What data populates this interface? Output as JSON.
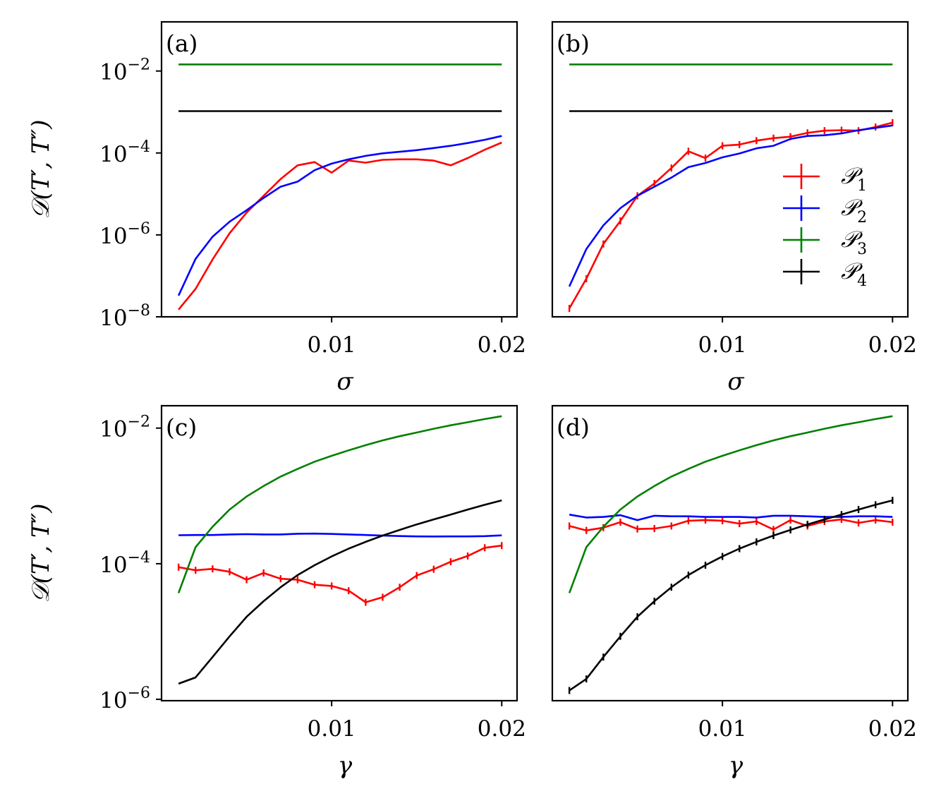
{
  "chart_data": [
    {
      "panel_label": "(a)",
      "type": "line",
      "xlabel": "σ",
      "ylabel": "𝒟(T′, T″)",
      "yscale": "log",
      "ylim_exp": [
        -8,
        -0.8
      ],
      "xlim": [
        0,
        0.0209
      ],
      "xticks": [
        0.01,
        0.02
      ],
      "xtick_labels": [
        "0.01",
        "0.02"
      ],
      "yticks_exp": [
        -8,
        -6,
        -4,
        -2
      ],
      "ytick_labels": [
        {
          "base": "10",
          "exp": "−8"
        },
        {
          "base": "10",
          "exp": "−6"
        },
        {
          "base": "10",
          "exp": "−4"
        },
        {
          "base": "10",
          "exp": "−2"
        }
      ],
      "x": [
        0.001,
        0.002,
        0.003,
        0.004,
        0.005,
        0.006,
        0.007,
        0.008,
        0.009,
        0.01,
        0.011,
        0.012,
        0.013,
        0.014,
        0.015,
        0.016,
        0.017,
        0.018,
        0.019,
        0.02
      ],
      "series": [
        {
          "name": "𝒫₁",
          "color": "#ff0000",
          "errorbars": false,
          "values": [
            1.5e-08,
            4.8e-08,
            2.5e-07,
            1.1e-06,
            3.5e-06,
            9e-06,
            2.3e-05,
            5e-05,
            6e-05,
            3.3e-05,
            6.5e-05,
            5.8e-05,
            6.8e-05,
            7e-05,
            7e-05,
            6.5e-05,
            5e-05,
            7.5e-05,
            0.00012,
            0.00018
          ]
        },
        {
          "name": "𝒫₂",
          "color": "#0000ff",
          "errorbars": false,
          "values": [
            3.3e-08,
            2.6e-07,
            9e-07,
            2.1e-06,
            4e-06,
            8e-06,
            1.5e-05,
            2e-05,
            3.8e-05,
            5.5e-05,
            7e-05,
            8.5e-05,
            9.8e-05,
            0.000107,
            0.000117,
            0.000132,
            0.00015,
            0.000175,
            0.00021,
            0.00026
          ]
        },
        {
          "name": "𝒫₃",
          "color": "#008000",
          "errorbars": false,
          "values": [
            0.0145,
            0.0145,
            0.0145,
            0.0145,
            0.0145,
            0.0145,
            0.0145,
            0.0145,
            0.0145,
            0.0145,
            0.0145,
            0.0145,
            0.0145,
            0.0145,
            0.0145,
            0.0145,
            0.0145,
            0.0145,
            0.0145,
            0.0145
          ]
        },
        {
          "name": "𝒫₄",
          "color": "#000000",
          "errorbars": false,
          "values": [
            0.00105,
            0.00105,
            0.00105,
            0.00105,
            0.00105,
            0.00105,
            0.00105,
            0.00105,
            0.00105,
            0.00105,
            0.00105,
            0.00105,
            0.00105,
            0.00105,
            0.00105,
            0.00105,
            0.00105,
            0.00105,
            0.00105,
            0.00105
          ]
        }
      ]
    },
    {
      "panel_label": "(b)",
      "type": "line",
      "xlabel": "σ",
      "ylabel": "",
      "yscale": "log",
      "ylim_exp": [
        -8,
        -0.8
      ],
      "xlim": [
        0,
        0.0209
      ],
      "xticks": [
        0.01,
        0.02
      ],
      "xtick_labels": [
        "0.01",
        "0.02"
      ],
      "yticks_exp": [],
      "ytick_labels": [],
      "legend": "right",
      "x": [
        0.001,
        0.002,
        0.003,
        0.004,
        0.005,
        0.006,
        0.007,
        0.008,
        0.009,
        0.01,
        0.011,
        0.012,
        0.013,
        0.014,
        0.015,
        0.016,
        0.017,
        0.018,
        0.019,
        0.02
      ],
      "series": [
        {
          "name": "𝒫₁",
          "color": "#ff0000",
          "errorbars": true,
          "values": [
            1.6e-08,
            8.5e-08,
            6e-07,
            2.2e-06,
            9e-06,
            1.8e-05,
            4.3e-05,
            0.00011,
            7.5e-05,
            0.00015,
            0.00016,
            0.0002,
            0.00023,
            0.00025,
            0.00031,
            0.00035,
            0.00036,
            0.00035,
            0.00043,
            0.00055
          ]
        },
        {
          "name": "𝒫₂",
          "color": "#0000ff",
          "errorbars": false,
          "values": [
            5.5e-08,
            4.5e-07,
            1.7e-06,
            4.5e-06,
            9e-06,
            1.5e-05,
            2.5e-05,
            4.5e-05,
            5.7e-05,
            7.8e-05,
            9.7e-05,
            0.00013,
            0.00015,
            0.00022,
            0.00026,
            0.00027,
            0.0003,
            0.00036,
            0.00041,
            0.00047
          ]
        },
        {
          "name": "𝒫₃",
          "color": "#008000",
          "errorbars": false,
          "values": [
            0.0145,
            0.0145,
            0.0145,
            0.0145,
            0.0145,
            0.0145,
            0.0145,
            0.0145,
            0.0145,
            0.0145,
            0.0145,
            0.0145,
            0.0145,
            0.0145,
            0.0145,
            0.0145,
            0.0145,
            0.0145,
            0.0145,
            0.0145
          ]
        },
        {
          "name": "𝒫₄",
          "color": "#000000",
          "errorbars": false,
          "values": [
            0.00105,
            0.00105,
            0.00105,
            0.00105,
            0.00105,
            0.00105,
            0.00105,
            0.00105,
            0.00105,
            0.00105,
            0.00105,
            0.00105,
            0.00105,
            0.00105,
            0.00105,
            0.00105,
            0.00105,
            0.00105,
            0.00105,
            0.00105
          ]
        }
      ]
    },
    {
      "panel_label": "(c)",
      "type": "line",
      "xlabel": "γ",
      "ylabel": "𝒟(T′, T″)",
      "yscale": "log",
      "ylim_exp": [
        -6.02,
        -1.67
      ],
      "xlim": [
        0,
        0.0209
      ],
      "xticks": [
        0.01,
        0.02
      ],
      "xtick_labels": [
        "0.01",
        "0.02"
      ],
      "yticks_exp": [
        -6,
        -4,
        -2
      ],
      "ytick_labels": [
        {
          "base": "10",
          "exp": "−6"
        },
        {
          "base": "10",
          "exp": "−4"
        },
        {
          "base": "10",
          "exp": "−2"
        }
      ],
      "x": [
        0.001,
        0.002,
        0.003,
        0.004,
        0.005,
        0.006,
        0.007,
        0.008,
        0.009,
        0.01,
        0.011,
        0.012,
        0.013,
        0.014,
        0.015,
        0.016,
        0.017,
        0.018,
        0.019,
        0.02
      ],
      "series": [
        {
          "name": "𝒫₁",
          "color": "#ff0000",
          "errorbars": true,
          "values": [
            8.9e-05,
            8e-05,
            8.4e-05,
            7.6e-05,
            5.8e-05,
            7.3e-05,
            6e-05,
            5.8e-05,
            4.9e-05,
            4.7e-05,
            4e-05,
            2.7e-05,
            3.2e-05,
            4.5e-05,
            6.7e-05,
            8.3e-05,
            0.000107,
            0.00013,
            0.000172,
            0.000185
          ]
        },
        {
          "name": "𝒫₂",
          "color": "#0000ff",
          "errorbars": false,
          "values": [
            0.000263,
            0.000265,
            0.000265,
            0.00027,
            0.000273,
            0.00027,
            0.00027,
            0.000277,
            0.000278,
            0.000275,
            0.00027,
            0.000265,
            0.00026,
            0.000256,
            0.000253,
            0.000252,
            0.000253,
            0.000253,
            0.000255,
            0.000262
          ]
        },
        {
          "name": "𝒫₃",
          "color": "#008000",
          "errorbars": false,
          "values": [
            3.7e-05,
            0.000175,
            0.00035,
            0.00063,
            0.00098,
            0.0014,
            0.00193,
            0.0025,
            0.0032,
            0.0039,
            0.0047,
            0.0056,
            0.0066,
            0.0076,
            0.0086,
            0.0098,
            0.011,
            0.0122,
            0.0136,
            0.015
          ]
        },
        {
          "name": "𝒫₄",
          "color": "#000000",
          "errorbars": false,
          "values": [
            1.7e-06,
            2.1e-06,
            4.2e-06,
            8.5e-06,
            1.65e-05,
            2.8e-05,
            4.5e-05,
            6.8e-05,
            9.5e-05,
            0.000128,
            0.000167,
            0.00021,
            0.00026,
            0.000315,
            0.00038,
            0.00045,
            0.00053,
            0.00063,
            0.00074,
            0.00086
          ]
        }
      ]
    },
    {
      "panel_label": "(d)",
      "type": "line",
      "xlabel": "γ",
      "ylabel": "",
      "yscale": "log",
      "ylim_exp": [
        -6.02,
        -1.67
      ],
      "xlim": [
        0,
        0.0209
      ],
      "xticks": [
        0.01,
        0.02
      ],
      "xtick_labels": [
        "0.01",
        "0.02"
      ],
      "yticks_exp": [],
      "ytick_labels": [],
      "x": [
        0.001,
        0.002,
        0.003,
        0.004,
        0.005,
        0.006,
        0.007,
        0.008,
        0.009,
        0.01,
        0.011,
        0.012,
        0.013,
        0.014,
        0.015,
        0.016,
        0.017,
        0.018,
        0.019,
        0.02
      ],
      "series": [
        {
          "name": "𝒫₁",
          "color": "#ff0000",
          "errorbars": true,
          "values": [
            0.00036,
            0.00031,
            0.00034,
            0.00041,
            0.000325,
            0.00033,
            0.00036,
            0.00043,
            0.00044,
            0.00043,
            0.00039,
            0.00042,
            0.00032,
            0.00044,
            0.00036,
            0.00042,
            0.00045,
            0.0004,
            0.00044,
            0.00041
          ]
        },
        {
          "name": "𝒫₂",
          "color": "#0000ff",
          "errorbars": false,
          "values": [
            0.00053,
            0.00048,
            0.00049,
            0.00052,
            0.00044,
            0.00051,
            0.0005,
            0.0005,
            0.00049,
            0.00049,
            0.00049,
            0.00048,
            0.00051,
            0.00051,
            0.0005,
            0.00049,
            0.00049,
            0.0005,
            0.0005,
            0.00049
          ]
        },
        {
          "name": "𝒫₃",
          "color": "#008000",
          "errorbars": false,
          "values": [
            3.7e-05,
            0.000175,
            0.00035,
            0.00063,
            0.00098,
            0.0014,
            0.00193,
            0.0025,
            0.0032,
            0.0039,
            0.0047,
            0.0056,
            0.0066,
            0.0076,
            0.0086,
            0.0098,
            0.011,
            0.0122,
            0.0136,
            0.015
          ]
        },
        {
          "name": "𝒫₄",
          "color": "#000000",
          "errorbars": true,
          "values": [
            1.35e-06,
            2e-06,
            4.2e-06,
            8.5e-06,
            1.65e-05,
            2.8e-05,
            4.5e-05,
            6.8e-05,
            9.5e-05,
            0.000128,
            0.000167,
            0.00021,
            0.00026,
            0.000315,
            0.00038,
            0.00045,
            0.00053,
            0.00063,
            0.00074,
            0.00086
          ]
        }
      ]
    }
  ],
  "legend": {
    "entries": [
      {
        "label": "𝒫",
        "sub": "1",
        "color": "#ff0000"
      },
      {
        "label": "𝒫",
        "sub": "2",
        "color": "#0000ff"
      },
      {
        "label": "𝒫",
        "sub": "3",
        "color": "#008000"
      },
      {
        "label": "𝒫",
        "sub": "4",
        "color": "#000000"
      }
    ]
  }
}
